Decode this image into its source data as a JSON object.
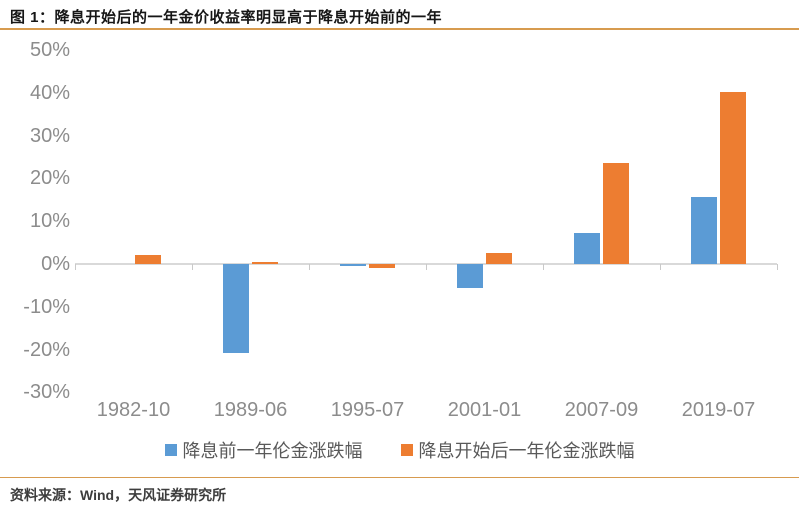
{
  "header": {
    "title": "图 1：降息开始后的一年金价收益率明显高于降息开始前的一年"
  },
  "footer": {
    "source": "资料来源：Wind，天风证券研究所"
  },
  "colors": {
    "series_blue": "#5B9BD5",
    "series_orange": "#ED7D31",
    "rule_orange": "#D79B4F",
    "axis_line": "#D9D9D9",
    "axis_label_gray": "#8C8C8C",
    "legend_text_gray": "#595959"
  },
  "chart_data": {
    "type": "bar",
    "title": "图 1：降息开始后的一年金价收益率明显高于降息开始前的一年",
    "categories": [
      "1982-10",
      "1989-06",
      "1995-07",
      "2001-01",
      "2007-09",
      "2019-07"
    ],
    "series": [
      {
        "name": "降息前一年伦金涨跌幅",
        "color": "#5B9BD5",
        "values": [
          0.0,
          -20.8,
          -0.5,
          -5.5,
          7.3,
          15.7
        ]
      },
      {
        "name": "降息开始后一年伦金涨跌幅",
        "color": "#ED7D31",
        "values": [
          2.1,
          0.5,
          -1.0,
          2.6,
          23.6,
          40.2
        ]
      }
    ],
    "xlabel": "",
    "ylabel": "",
    "ylim": [
      -30,
      50
    ],
    "y_ticks": [
      50,
      40,
      30,
      20,
      10,
      0,
      -10,
      -20,
      -30
    ],
    "y_tick_suffix": "%",
    "grid": false,
    "legend_position": "bottom"
  }
}
